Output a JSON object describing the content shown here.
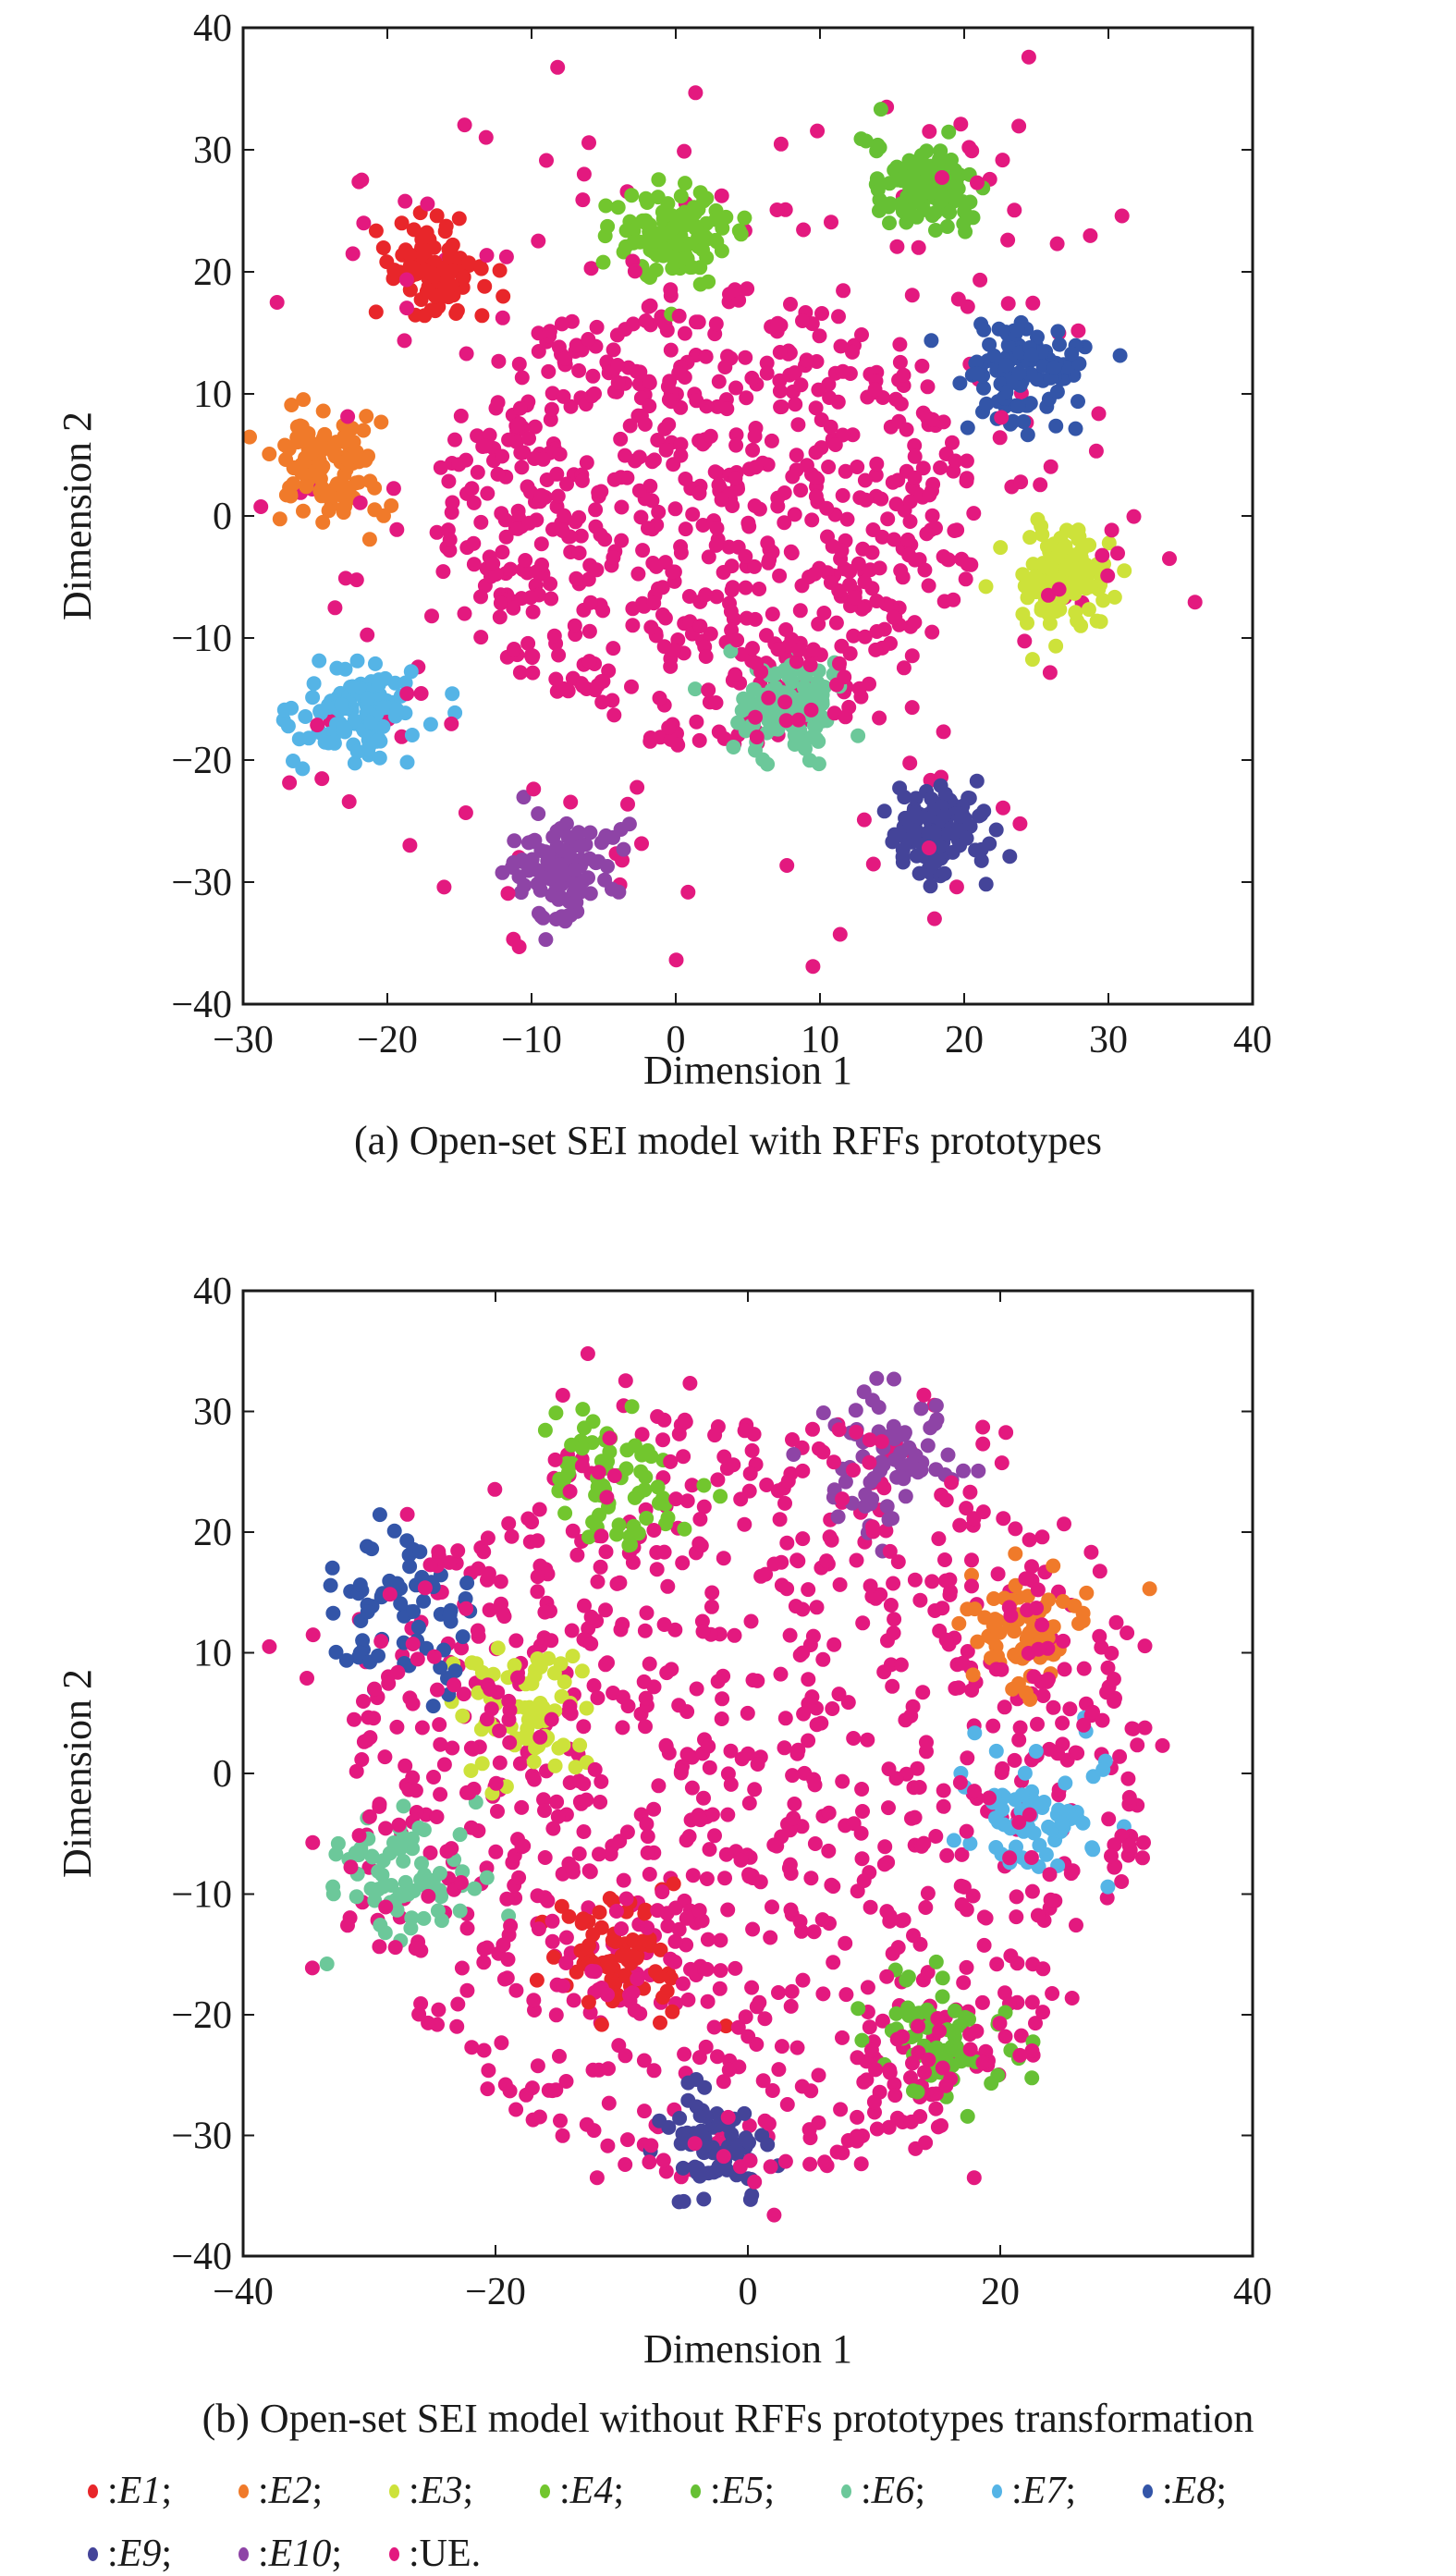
{
  "chart_data": [
    {
      "type": "scatter",
      "panel": "a",
      "caption": "(a) Open-set SEI model with RFFs prototypes",
      "xlabel": "Dimension 1",
      "ylabel": "Dimension 2",
      "xlim": [
        -30,
        40
      ],
      "ylim": [
        -40,
        40
      ],
      "xticks": [
        "−30",
        "−20",
        "−10",
        "0",
        "10",
        "20",
        "30",
        "40"
      ],
      "xtick_values": [
        -30,
        -20,
        -10,
        0,
        10,
        20,
        30,
        40
      ],
      "yticks": [
        "40",
        "30",
        "20",
        "10",
        "0",
        "−10",
        "−20",
        "−30",
        "−40"
      ],
      "ytick_values": [
        40,
        30,
        20,
        10,
        0,
        -10,
        -20,
        -30,
        -40
      ],
      "grid": false,
      "series": [
        {
          "name": "E1",
          "center": [
            -17,
            20
          ],
          "spread": 1.8,
          "count": 110
        },
        {
          "name": "E2",
          "center": [
            -24,
            4
          ],
          "spread": 2.0,
          "count": 110
        },
        {
          "name": "E3",
          "center": [
            27,
            -5
          ],
          "spread": 2.0,
          "count": 110
        },
        {
          "name": "E4",
          "center": [
            0,
            23
          ],
          "spread": 2.0,
          "count": 110
        },
        {
          "name": "E5",
          "center": [
            17,
            27
          ],
          "spread": 1.8,
          "count": 110
        },
        {
          "name": "E6",
          "center": [
            8,
            -16
          ],
          "spread": 2.0,
          "count": 110
        },
        {
          "name": "E7",
          "center": [
            -22,
            -16
          ],
          "spread": 2.0,
          "count": 110
        },
        {
          "name": "E8",
          "center": [
            24,
            12
          ],
          "spread": 2.0,
          "count": 110
        },
        {
          "name": "E9",
          "center": [
            18,
            -26
          ],
          "spread": 1.9,
          "count": 110
        },
        {
          "name": "E10",
          "center": [
            -8,
            -29
          ],
          "spread": 1.9,
          "count": 110
        },
        {
          "name": "UE",
          "center": [
            2,
            0
          ],
          "radius": 19,
          "count": 900
        }
      ]
    },
    {
      "type": "scatter",
      "panel": "b",
      "caption": "(b) Open-set SEI model without RFFs prototypes transformation",
      "xlabel": "Dimension 1",
      "ylabel": "Dimension 2",
      "xlim": [
        -40,
        40
      ],
      "ylim": [
        -40,
        40
      ],
      "xticks": [
        "−40",
        "−20",
        "0",
        "20",
        "40"
      ],
      "xtick_values": [
        -40,
        -20,
        0,
        20,
        40
      ],
      "yticks": [
        "40",
        "30",
        "20",
        "10",
        "0",
        "−10",
        "−20",
        "−30",
        "−40"
      ],
      "ytick_values": [
        40,
        30,
        20,
        10,
        0,
        -10,
        -20,
        -30,
        -40
      ],
      "grid": false,
      "series": [
        {
          "name": "E1",
          "center": [
            -10,
            -15
          ],
          "spread": 2.6,
          "count": 70
        },
        {
          "name": "E2",
          "center": [
            22,
            12
          ],
          "spread": 2.6,
          "count": 70
        },
        {
          "name": "E3",
          "center": [
            -17,
            5
          ],
          "spread": 2.8,
          "count": 70
        },
        {
          "name": "E4",
          "center": [
            -10,
            24
          ],
          "spread": 2.8,
          "count": 70
        },
        {
          "name": "E5",
          "center": [
            15,
            -22
          ],
          "spread": 2.8,
          "count": 70
        },
        {
          "name": "E6",
          "center": [
            -27,
            -8
          ],
          "spread": 2.8,
          "count": 70
        },
        {
          "name": "E7",
          "center": [
            23,
            -3
          ],
          "spread": 2.8,
          "count": 70
        },
        {
          "name": "E8",
          "center": [
            -27,
            13
          ],
          "spread": 2.8,
          "count": 70
        },
        {
          "name": "E9",
          "center": [
            -3,
            -31
          ],
          "spread": 2.4,
          "count": 70
        },
        {
          "name": "E10",
          "center": [
            11,
            26
          ],
          "spread": 2.6,
          "count": 70
        },
        {
          "name": "UE",
          "center": [
            0,
            -2
          ],
          "radius": 32,
          "count": 1100
        }
      ]
    }
  ],
  "colors": {
    "E1": "#e8262a",
    "E2": "#f07a2a",
    "E3": "#cde23a",
    "E4": "#72c62e",
    "E5": "#66c034",
    "E6": "#6cc89a",
    "E7": "#55b4e6",
    "E8": "#3355a8",
    "E9": "#444499",
    "E10": "#8e44a6",
    "UE": "#e3197f"
  },
  "legend": [
    {
      "key": "E1",
      "label": "E1",
      "sep": ": ",
      "end": ";"
    },
    {
      "key": "E2",
      "label": "E2",
      "sep": ": ",
      "end": ";"
    },
    {
      "key": "E3",
      "label": "E3",
      "sep": ": ",
      "end": ";"
    },
    {
      "key": "E4",
      "label": "E4",
      "sep": ": ",
      "end": ";"
    },
    {
      "key": "E5",
      "label": "E5",
      "sep": ": ",
      "end": ";"
    },
    {
      "key": "E6",
      "label": "E6",
      "sep": ": ",
      "end": ";"
    },
    {
      "key": "E7",
      "label": "E7",
      "sep": ": ",
      "end": ";"
    },
    {
      "key": "E8",
      "label": "E8",
      "sep": ": ",
      "end": ";"
    },
    {
      "key": "E9",
      "label": "E9",
      "sep": ": ",
      "end": ";"
    },
    {
      "key": "E10",
      "label": "E10",
      "sep": ": ",
      "end": ";"
    },
    {
      "key": "UE",
      "label": "UE.",
      "sep": ": ",
      "end": ""
    }
  ]
}
